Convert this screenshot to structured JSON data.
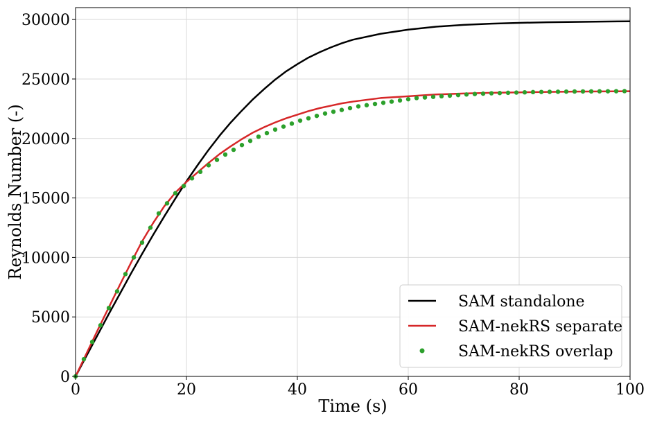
{
  "chart_data": {
    "type": "line",
    "xlabel": "Time (s)",
    "ylabel": "Reynolds Number (-)",
    "xlim": [
      0,
      100
    ],
    "ylim": [
      0,
      31000
    ],
    "x_ticks": [
      0,
      20,
      40,
      60,
      80,
      100
    ],
    "y_ticks": [
      0,
      5000,
      10000,
      15000,
      20000,
      25000,
      30000
    ],
    "grid": true,
    "legend_position": "bottom-right",
    "series": [
      {
        "name": "SAM standalone",
        "style": "line",
        "color": "#000000",
        "x": [
          0,
          2,
          4,
          6,
          8,
          10,
          12,
          14,
          16,
          18,
          20,
          22,
          24,
          26,
          28,
          30,
          32,
          34,
          36,
          38,
          40,
          42,
          44,
          46,
          48,
          50,
          55,
          60,
          65,
          70,
          75,
          80,
          85,
          90,
          95,
          100
        ],
        "y": [
          0,
          1750,
          3500,
          5250,
          6950,
          8650,
          10300,
          11900,
          13450,
          14950,
          16400,
          17750,
          19050,
          20250,
          21350,
          22350,
          23300,
          24150,
          24950,
          25650,
          26250,
          26800,
          27250,
          27650,
          28000,
          28300,
          28800,
          29150,
          29400,
          29550,
          29650,
          29720,
          29770,
          29800,
          29830,
          29850
        ]
      },
      {
        "name": "SAM-nekRS separate",
        "style": "line",
        "color": "#d62728",
        "x": [
          0,
          2,
          4,
          6,
          8,
          10,
          12,
          14,
          16,
          18,
          20,
          22,
          24,
          26,
          28,
          30,
          32,
          34,
          36,
          38,
          40,
          42,
          44,
          46,
          48,
          50,
          55,
          60,
          65,
          70,
          75,
          80,
          85,
          90,
          95,
          100
        ],
        "y": [
          0,
          1950,
          3900,
          5800,
          7700,
          9550,
          11350,
          12900,
          14300,
          15450,
          16350,
          17150,
          17950,
          18700,
          19350,
          19950,
          20500,
          20950,
          21350,
          21700,
          22000,
          22300,
          22550,
          22750,
          22950,
          23100,
          23400,
          23550,
          23700,
          23780,
          23840,
          23880,
          23910,
          23940,
          23960,
          23970
        ]
      },
      {
        "name": "SAM-nekRS overlap",
        "style": "markers",
        "color": "#2ca02c",
        "x": [
          0,
          1.5,
          3,
          4.5,
          6,
          7.5,
          9,
          10.5,
          12,
          13.5,
          15,
          16.5,
          18,
          19.5,
          21,
          22.5,
          24,
          25.5,
          27,
          28.5,
          30,
          31.5,
          33,
          34.5,
          36,
          37.5,
          39,
          40.5,
          42,
          43.5,
          45,
          46.5,
          48,
          49.5,
          51,
          52.5,
          54,
          55.5,
          57,
          58.5,
          60,
          61.5,
          63,
          64.5,
          66,
          67.5,
          69,
          70.5,
          72,
          73.5,
          75,
          76.5,
          78,
          79.5,
          81,
          82.5,
          84,
          85.5,
          87,
          88.5,
          90,
          91.5,
          93,
          94.5,
          96,
          97.5,
          99
        ],
        "y": [
          0,
          1450,
          2900,
          4300,
          5750,
          7150,
          8600,
          10000,
          11250,
          12500,
          13700,
          14550,
          15400,
          16000,
          16650,
          17200,
          17750,
          18200,
          18650,
          19050,
          19450,
          19800,
          20150,
          20450,
          20750,
          21000,
          21250,
          21500,
          21700,
          21900,
          22100,
          22250,
          22400,
          22550,
          22700,
          22800,
          22900,
          23000,
          23100,
          23200,
          23300,
          23400,
          23450,
          23500,
          23550,
          23600,
          23650,
          23700,
          23740,
          23770,
          23800,
          23820,
          23840,
          23860,
          23880,
          23900,
          23910,
          23920,
          23930,
          23940,
          23950,
          23955,
          23960,
          23965,
          23970,
          23975,
          23980
        ]
      }
    ]
  }
}
